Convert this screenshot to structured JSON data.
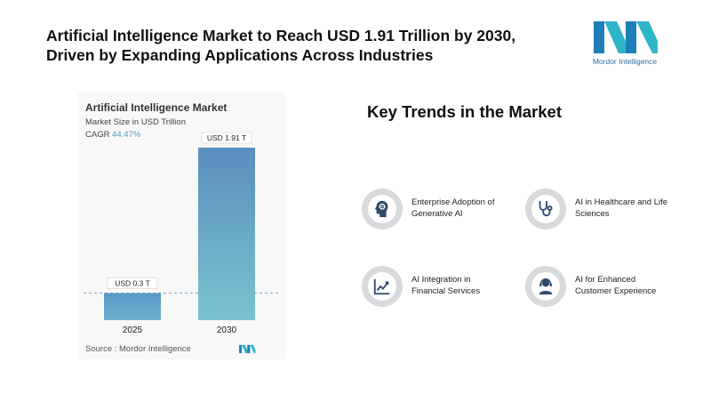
{
  "headline": {
    "line1": "Artificial Intelligence Market to Reach USD 1.91 Trillion by 2030,",
    "line2": "Driven by Expanding Applications Across Industries"
  },
  "logo": {
    "text": "Mordor Intelligence"
  },
  "chart_data": {
    "type": "bar",
    "title": "Artificial Intelligence Market",
    "subtitle": "Market Size in USD Trillion",
    "cagr_label": "CAGR",
    "cagr_value": "44.47%",
    "categories": [
      "2025",
      "2030"
    ],
    "values": [
      0.3,
      1.91
    ],
    "data_labels": [
      "USD 0.3 T",
      "USD 1.91 T"
    ],
    "ylim": [
      0,
      1.91
    ],
    "grid": false,
    "reference_line": "dashed at 2025 value",
    "colors": {
      "bar_2025": "#5b9fc9",
      "bar_2030": "#5a93c1",
      "bar_light": "#7cc4cf"
    },
    "source": "Source :  Mordor Intelligence"
  },
  "trends": {
    "title": "Key Trends in the Market",
    "items": [
      {
        "line1": "Enterprise Adoption of",
        "line2": "Generative AI",
        "icon": "ai-head-icon"
      },
      {
        "line1": "AI in Healthcare and Life",
        "line2": "Sciences",
        "icon": "stethoscope-icon"
      },
      {
        "line1": "AI Integration in",
        "line2": "Financial Services",
        "icon": "line-chart-icon"
      },
      {
        "line1": "AI for Enhanced",
        "line2": "Customer Experience",
        "icon": "support-agent-icon"
      }
    ]
  }
}
